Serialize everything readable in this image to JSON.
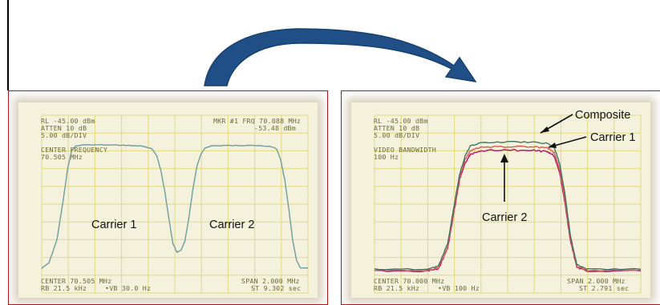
{
  "colors": {
    "arrow": "#1f4f86",
    "panel_border": "#b5121b",
    "screen_bg": "#f4f1dc",
    "grid": "#e0da84",
    "readout_text": "#6b6b3a",
    "trace_single": "#6f9da0",
    "trace_composite": "#3a6e62",
    "trace_carrier1": "#d85a55",
    "trace_carrier2": "#b0206a"
  },
  "icons": {
    "transition": "curved-arrow-right-icon"
  },
  "left_panel": {
    "readout": {
      "rl": "RL -45.00 dBm",
      "atten": "ATTEN 10 dB",
      "scale": "5.00 dB/DIV",
      "marker": "MKR #1 FRQ 70.088 MHz",
      "marker_level": "-53.48 dBm",
      "center_label": "CENTER FREQUENCY",
      "center_value": "70.505 MHz",
      "center": "CENTER 70.505 MHz",
      "span": "SPAN 2.000 MHz",
      "rb": "RB 21.5 kHz",
      "vb": "•VB 30.0 Hz",
      "st": "ST 9.302 sec"
    },
    "labels": {
      "carrier1": "Carrier 1",
      "carrier2": "Carrier 2"
    }
  },
  "right_panel": {
    "readout": {
      "rl": "RL -45.00 dBm",
      "atten": "ATTEN 10 dB",
      "scale": "5.00 dB/DIV",
      "video_label": "VIDEO BANDWIDTH",
      "video_value": "100 Hz",
      "center": "CENTER 70.000 MHz",
      "span": "SPAN 2.000 MHz",
      "rb": "RB 21.5 kHz",
      "vb": "•VB 100 Hz",
      "st": "ST 2.791 sec"
    },
    "labels": {
      "composite": "Composite",
      "carrier1": "Carrier 1",
      "carrier2": "Carrier 2"
    }
  },
  "chart_data": [
    {
      "type": "line",
      "title": "",
      "xlabel": "",
      "ylabel": "",
      "grid": true,
      "xlim": [
        69.505,
        71.505
      ],
      "ylim": [
        -95,
        -45
      ],
      "x_unit": "MHz",
      "y_unit": "dBm",
      "series": [
        {
          "name": "",
          "x": [
            69.505,
            69.56,
            69.62,
            69.67,
            69.7,
            69.73,
            69.76,
            69.78,
            69.83,
            69.95,
            70.1,
            70.25,
            70.33,
            70.37,
            70.4,
            70.43,
            70.46,
            70.49,
            70.52,
            70.55,
            70.58,
            70.61,
            70.64,
            70.67,
            70.7,
            70.73,
            70.78,
            70.92,
            71.08,
            71.22,
            71.27,
            71.3,
            71.33,
            71.36,
            71.39,
            71.42,
            71.45,
            71.505
          ],
          "y": [
            -88.0,
            -86.5,
            -80.0,
            -68.0,
            -60.0,
            -55.0,
            -53.7,
            -53.5,
            -53.3,
            -53.3,
            -53.4,
            -53.6,
            -54.3,
            -56.5,
            -60.5,
            -66.5,
            -74.0,
            -81.0,
            -83.5,
            -83.0,
            -80.5,
            -74.0,
            -66.0,
            -59.5,
            -56.0,
            -54.3,
            -53.6,
            -53.5,
            -53.5,
            -53.7,
            -54.5,
            -57.5,
            -63.0,
            -71.0,
            -80.0,
            -86.0,
            -88.0,
            -88.0
          ]
        }
      ]
    },
    {
      "type": "line",
      "title": "",
      "xlabel": "",
      "ylabel": "",
      "grid": true,
      "xlim": [
        69.0,
        71.0
      ],
      "ylim": [
        -95,
        -45
      ],
      "x_unit": "MHz",
      "y_unit": "dBm",
      "series": [
        {
          "name": "Composite",
          "x": [
            69.0,
            69.4,
            69.48,
            69.55,
            69.6,
            69.64,
            69.68,
            69.72,
            69.8,
            70.0,
            70.2,
            70.3,
            70.35,
            70.39,
            70.43,
            70.47,
            70.52,
            70.6,
            71.0
          ],
          "y": [
            -88.3,
            -88.3,
            -87.5,
            -81.0,
            -70.0,
            -61.5,
            -56.5,
            -53.6,
            -52.8,
            -52.5,
            -52.6,
            -52.9,
            -54.0,
            -58.5,
            -67.0,
            -78.5,
            -87.0,
            -88.3,
            -88.3
          ]
        },
        {
          "name": "Carrier 1",
          "x": [
            69.0,
            69.4,
            69.48,
            69.55,
            69.6,
            69.64,
            69.68,
            69.72,
            69.8,
            70.0,
            70.2,
            70.3,
            70.35,
            70.39,
            70.43,
            70.47,
            70.52,
            70.6,
            71.0
          ],
          "y": [
            -88.6,
            -88.6,
            -88.0,
            -82.0,
            -71.0,
            -62.5,
            -57.5,
            -55.0,
            -54.0,
            -53.8,
            -53.9,
            -54.2,
            -55.5,
            -60.0,
            -68.5,
            -79.5,
            -87.5,
            -88.6,
            -88.6
          ]
        },
        {
          "name": "Carrier 2",
          "x": [
            69.0,
            69.4,
            69.48,
            69.55,
            69.6,
            69.64,
            69.68,
            69.72,
            69.8,
            70.0,
            70.2,
            70.3,
            70.35,
            70.39,
            70.43,
            70.47,
            70.52,
            70.6,
            71.0
          ],
          "y": [
            -88.8,
            -88.8,
            -88.2,
            -82.5,
            -71.5,
            -63.0,
            -58.5,
            -56.0,
            -55.0,
            -54.8,
            -54.9,
            -55.2,
            -56.5,
            -61.0,
            -69.5,
            -80.0,
            -87.8,
            -88.8,
            -88.8
          ]
        }
      ]
    }
  ]
}
